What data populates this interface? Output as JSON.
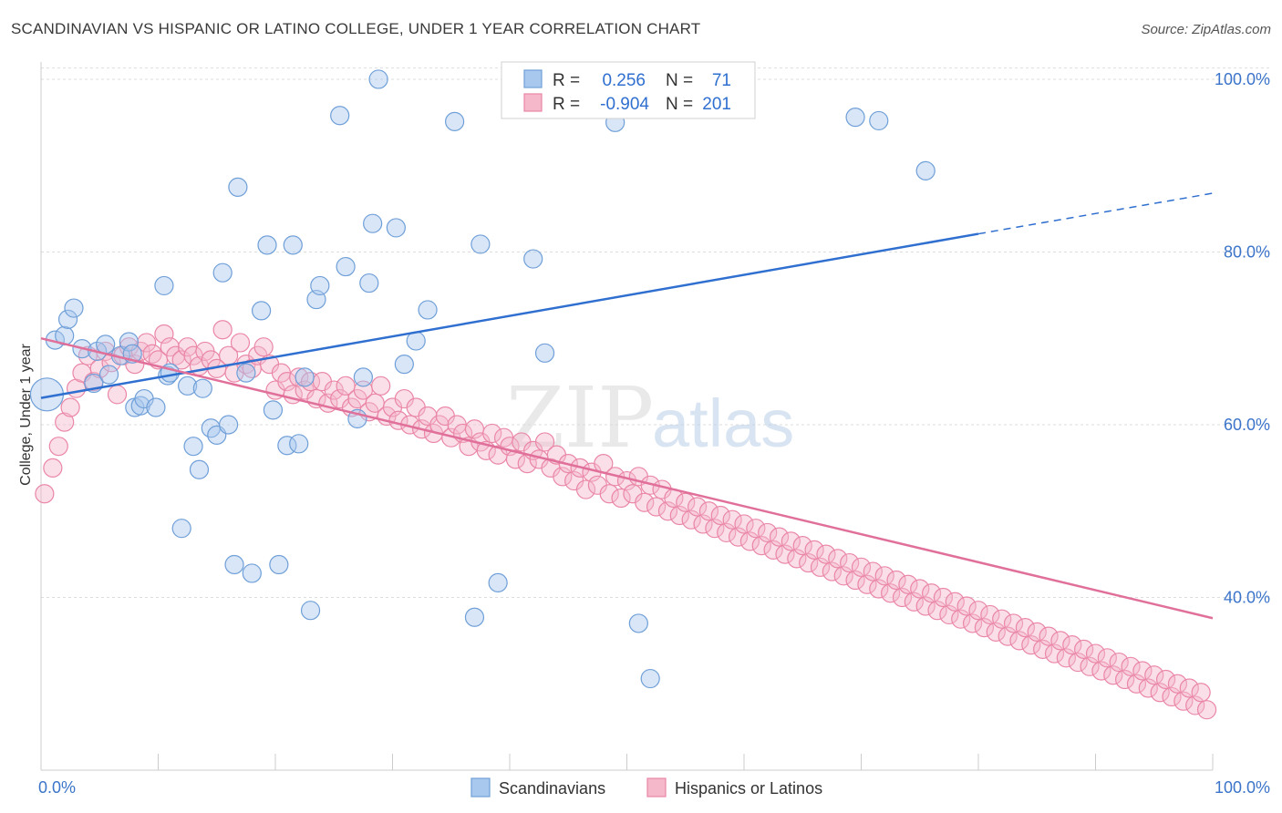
{
  "title": "SCANDINAVIAN VS HISPANIC OR LATINO COLLEGE, UNDER 1 YEAR CORRELATION CHART",
  "source": "Source: ZipAtlas.com",
  "watermark": {
    "zip": "ZIP",
    "atlas": "atlas"
  },
  "colors": {
    "blue_fill": "#a9c8ee",
    "blue_stroke": "#6f9fd8",
    "blue_line": "#2f6fd0",
    "pink_fill": "#f5b8cb",
    "pink_stroke": "#ea86a6",
    "pink_line": "#e0709a",
    "grid": "#dddddd",
    "tick_text": "#3b74c9"
  },
  "legend": {
    "rows": [
      {
        "r_label": "R =",
        "r_value": "0.256",
        "n_label": "N =",
        "n_value": "71"
      },
      {
        "r_label": "R =",
        "r_value": "-0.904",
        "n_label": "N =",
        "n_value": "201"
      }
    ]
  },
  "chart_data": {
    "type": "scatter",
    "title": "SCANDINAVIAN VS HISPANIC OR LATINO COLLEGE, UNDER 1 YEAR CORRELATION CHART",
    "xlabel": "",
    "ylabel": "College, Under 1 year",
    "xlim": [
      0,
      100
    ],
    "ylim": [
      20,
      102
    ],
    "x_tick_labels": [
      "0.0%",
      "100.0%"
    ],
    "y_ticks": [
      40,
      60,
      80,
      100
    ],
    "y_tick_labels": [
      "40.0%",
      "60.0%",
      "80.0%",
      "100.0%"
    ],
    "grid": true,
    "legend_position": "top-center",
    "series": [
      {
        "name": "Scandinavians",
        "color": "#a9c8ee",
        "trend": {
          "x_start": 0,
          "y_start": 63.1,
          "x_solid_end": 80,
          "y_solid_end": 82.1,
          "x_end": 100,
          "y_end": 86.8
        },
        "points": [
          [
            0.5,
            63.5
          ],
          [
            1.2,
            69.8
          ],
          [
            2.0,
            70.3
          ],
          [
            2.3,
            72.2
          ],
          [
            2.8,
            73.5
          ],
          [
            3.5,
            68.8
          ],
          [
            4.5,
            64.8
          ],
          [
            4.8,
            68.5
          ],
          [
            5.5,
            69.3
          ],
          [
            5.8,
            65.8
          ],
          [
            6.8,
            68.0
          ],
          [
            7.5,
            69.6
          ],
          [
            7.8,
            68.2
          ],
          [
            8.0,
            62.0
          ],
          [
            8.5,
            62.2
          ],
          [
            8.8,
            63.0
          ],
          [
            9.8,
            62.0
          ],
          [
            10.5,
            76.1
          ],
          [
            10.8,
            65.7
          ],
          [
            11.0,
            66.0
          ],
          [
            12.0,
            48.0
          ],
          [
            12.5,
            64.5
          ],
          [
            13.0,
            57.5
          ],
          [
            13.5,
            54.8
          ],
          [
            13.8,
            64.2
          ],
          [
            14.5,
            59.6
          ],
          [
            15.0,
            58.8
          ],
          [
            15.5,
            77.6
          ],
          [
            16.0,
            60.0
          ],
          [
            16.5,
            43.8
          ],
          [
            16.8,
            87.5
          ],
          [
            17.5,
            66.0
          ],
          [
            18.0,
            42.8
          ],
          [
            18.8,
            73.2
          ],
          [
            19.3,
            80.8
          ],
          [
            19.8,
            61.7
          ],
          [
            20.3,
            43.8
          ],
          [
            21.0,
            57.6
          ],
          [
            21.5,
            80.8
          ],
          [
            22.0,
            57.8
          ],
          [
            22.5,
            65.5
          ],
          [
            23.0,
            38.5
          ],
          [
            23.5,
            74.5
          ],
          [
            23.8,
            76.1
          ],
          [
            25.5,
            95.8
          ],
          [
            26.0,
            78.3
          ],
          [
            27.0,
            60.7
          ],
          [
            27.5,
            65.5
          ],
          [
            28.0,
            76.4
          ],
          [
            28.3,
            83.3
          ],
          [
            28.8,
            100.0
          ],
          [
            30.3,
            82.8
          ],
          [
            31.0,
            67.0
          ],
          [
            32.0,
            69.7
          ],
          [
            33.0,
            73.3
          ],
          [
            35.3,
            95.1
          ],
          [
            37.0,
            37.7
          ],
          [
            37.5,
            80.9
          ],
          [
            39.0,
            41.7
          ],
          [
            42.0,
            79.2
          ],
          [
            43.0,
            68.3
          ],
          [
            47.5,
            100.0
          ],
          [
            49.0,
            95.0
          ],
          [
            51.0,
            37.0
          ],
          [
            52.0,
            30.6
          ],
          [
            69.5,
            95.6
          ],
          [
            71.5,
            95.2
          ],
          [
            75.5,
            89.4
          ]
        ]
      },
      {
        "name": "Hispanics or Latinos",
        "color": "#f5b8cb",
        "trend": {
          "x_start": 0,
          "y_start": 70.0,
          "x_end": 100,
          "y_end": 37.6
        },
        "points": [
          [
            0.3,
            52.0
          ],
          [
            1.0,
            55.0
          ],
          [
            1.5,
            57.5
          ],
          [
            2.0,
            60.3
          ],
          [
            2.5,
            62.0
          ],
          [
            3.0,
            64.2
          ],
          [
            3.5,
            66.0
          ],
          [
            4.0,
            68.0
          ],
          [
            4.5,
            65.0
          ],
          [
            5.0,
            66.5
          ],
          [
            5.5,
            68.5
          ],
          [
            6.0,
            67.2
          ],
          [
            6.5,
            63.5
          ],
          [
            7.0,
            68.0
          ],
          [
            7.5,
            69.0
          ],
          [
            8.0,
            67.0
          ],
          [
            8.5,
            68.5
          ],
          [
            9.0,
            69.5
          ],
          [
            9.5,
            68.2
          ],
          [
            10.0,
            67.5
          ],
          [
            10.5,
            70.5
          ],
          [
            11.0,
            69.0
          ],
          [
            11.5,
            68.0
          ],
          [
            12.0,
            67.5
          ],
          [
            12.5,
            69.0
          ],
          [
            13.0,
            68.0
          ],
          [
            13.5,
            66.8
          ],
          [
            14.0,
            68.5
          ],
          [
            14.5,
            67.5
          ],
          [
            15.0,
            66.5
          ],
          [
            15.5,
            71.0
          ],
          [
            16.0,
            68.0
          ],
          [
            16.5,
            66.0
          ],
          [
            17.0,
            69.5
          ],
          [
            17.5,
            67.0
          ],
          [
            18.0,
            66.5
          ],
          [
            18.5,
            68.0
          ],
          [
            19.0,
            69.0
          ],
          [
            19.5,
            67.0
          ],
          [
            20.0,
            64.0
          ],
          [
            20.5,
            66.0
          ],
          [
            21.0,
            65.0
          ],
          [
            21.5,
            63.5
          ],
          [
            22.0,
            65.5
          ],
          [
            22.5,
            64.0
          ],
          [
            23.0,
            65.0
          ],
          [
            23.5,
            63.0
          ],
          [
            24.0,
            65.0
          ],
          [
            24.5,
            62.5
          ],
          [
            25.0,
            64.0
          ],
          [
            25.5,
            63.0
          ],
          [
            26.0,
            64.5
          ],
          [
            26.5,
            62.0
          ],
          [
            27.0,
            63.0
          ],
          [
            27.5,
            64.0
          ],
          [
            28.0,
            61.5
          ],
          [
            28.5,
            62.5
          ],
          [
            29.0,
            64.5
          ],
          [
            29.5,
            61.0
          ],
          [
            30.0,
            62.0
          ],
          [
            30.5,
            60.5
          ],
          [
            31.0,
            63.0
          ],
          [
            31.5,
            60.0
          ],
          [
            32.0,
            62.0
          ],
          [
            32.5,
            59.5
          ],
          [
            33.0,
            61.0
          ],
          [
            33.5,
            59.0
          ],
          [
            34.0,
            60.0
          ],
          [
            34.5,
            61.0
          ],
          [
            35.0,
            58.5
          ],
          [
            35.5,
            60.0
          ],
          [
            36.0,
            59.0
          ],
          [
            36.5,
            57.5
          ],
          [
            37.0,
            59.5
          ],
          [
            37.5,
            58.0
          ],
          [
            38.0,
            57.0
          ],
          [
            38.5,
            59.0
          ],
          [
            39.0,
            56.5
          ],
          [
            39.5,
            58.5
          ],
          [
            40.0,
            57.5
          ],
          [
            40.5,
            56.0
          ],
          [
            41.0,
            58.0
          ],
          [
            41.5,
            55.5
          ],
          [
            42.0,
            57.0
          ],
          [
            42.5,
            56.0
          ],
          [
            43.0,
            58.0
          ],
          [
            43.5,
            55.0
          ],
          [
            44.0,
            56.5
          ],
          [
            44.5,
            54.0
          ],
          [
            45.0,
            55.5
          ],
          [
            45.5,
            53.5
          ],
          [
            46.0,
            55.0
          ],
          [
            46.5,
            52.5
          ],
          [
            47.0,
            54.5
          ],
          [
            47.5,
            53.0
          ],
          [
            48.0,
            55.5
          ],
          [
            48.5,
            52.0
          ],
          [
            49.0,
            54.0
          ],
          [
            49.5,
            51.5
          ],
          [
            50.0,
            53.5
          ],
          [
            50.5,
            52.0
          ],
          [
            51.0,
            54.0
          ],
          [
            51.5,
            51.0
          ],
          [
            52.0,
            53.0
          ],
          [
            52.5,
            50.5
          ],
          [
            53.0,
            52.5
          ],
          [
            53.5,
            50.0
          ],
          [
            54.0,
            51.5
          ],
          [
            54.5,
            49.5
          ],
          [
            55.0,
            51.0
          ],
          [
            55.5,
            49.0
          ],
          [
            56.0,
            50.5
          ],
          [
            56.5,
            48.5
          ],
          [
            57.0,
            50.0
          ],
          [
            57.5,
            48.0
          ],
          [
            58.0,
            49.5
          ],
          [
            58.5,
            47.5
          ],
          [
            59.0,
            49.0
          ],
          [
            59.5,
            47.0
          ],
          [
            60.0,
            48.5
          ],
          [
            60.5,
            46.5
          ],
          [
            61.0,
            48.0
          ],
          [
            61.5,
            46.0
          ],
          [
            62.0,
            47.5
          ],
          [
            62.5,
            45.5
          ],
          [
            63.0,
            47.0
          ],
          [
            63.5,
            45.0
          ],
          [
            64.0,
            46.5
          ],
          [
            64.5,
            44.5
          ],
          [
            65.0,
            46.0
          ],
          [
            65.5,
            44.0
          ],
          [
            66.0,
            45.5
          ],
          [
            66.5,
            43.5
          ],
          [
            67.0,
            45.0
          ],
          [
            67.5,
            43.0
          ],
          [
            68.0,
            44.5
          ],
          [
            68.5,
            42.5
          ],
          [
            69.0,
            44.0
          ],
          [
            69.5,
            42.0
          ],
          [
            70.0,
            43.5
          ],
          [
            70.5,
            41.5
          ],
          [
            71.0,
            43.0
          ],
          [
            71.5,
            41.0
          ],
          [
            72.0,
            42.5
          ],
          [
            72.5,
            40.5
          ],
          [
            73.0,
            42.0
          ],
          [
            73.5,
            40.0
          ],
          [
            74.0,
            41.5
          ],
          [
            74.5,
            39.5
          ],
          [
            75.0,
            41.0
          ],
          [
            75.5,
            39.0
          ],
          [
            76.0,
            40.5
          ],
          [
            76.5,
            38.5
          ],
          [
            77.0,
            40.0
          ],
          [
            77.5,
            38.0
          ],
          [
            78.0,
            39.5
          ],
          [
            78.5,
            37.5
          ],
          [
            79.0,
            39.0
          ],
          [
            79.5,
            37.0
          ],
          [
            80.0,
            38.5
          ],
          [
            80.5,
            36.5
          ],
          [
            81.0,
            38.0
          ],
          [
            81.5,
            36.0
          ],
          [
            82.0,
            37.5
          ],
          [
            82.5,
            35.5
          ],
          [
            83.0,
            37.0
          ],
          [
            83.5,
            35.0
          ],
          [
            84.0,
            36.5
          ],
          [
            84.5,
            34.5
          ],
          [
            85.0,
            36.0
          ],
          [
            85.5,
            34.0
          ],
          [
            86.0,
            35.5
          ],
          [
            86.5,
            33.5
          ],
          [
            87.0,
            35.0
          ],
          [
            87.5,
            33.0
          ],
          [
            88.0,
            34.5
          ],
          [
            88.5,
            32.5
          ],
          [
            89.0,
            34.0
          ],
          [
            89.5,
            32.0
          ],
          [
            90.0,
            33.5
          ],
          [
            90.5,
            31.5
          ],
          [
            91.0,
            33.0
          ],
          [
            91.5,
            31.0
          ],
          [
            92.0,
            32.5
          ],
          [
            92.5,
            30.5
          ],
          [
            93.0,
            32.0
          ],
          [
            93.5,
            30.0
          ],
          [
            94.0,
            31.5
          ],
          [
            94.5,
            29.5
          ],
          [
            95.0,
            31.0
          ],
          [
            95.5,
            29.0
          ],
          [
            96.0,
            30.5
          ],
          [
            96.5,
            28.5
          ],
          [
            97.0,
            30.0
          ],
          [
            97.5,
            28.0
          ],
          [
            98.0,
            29.5
          ],
          [
            98.5,
            27.5
          ],
          [
            99.0,
            29.0
          ],
          [
            99.5,
            27.0
          ]
        ]
      }
    ]
  },
  "bottom_legend": [
    {
      "label": "Scandinavians"
    },
    {
      "label": "Hispanics or Latinos"
    }
  ]
}
